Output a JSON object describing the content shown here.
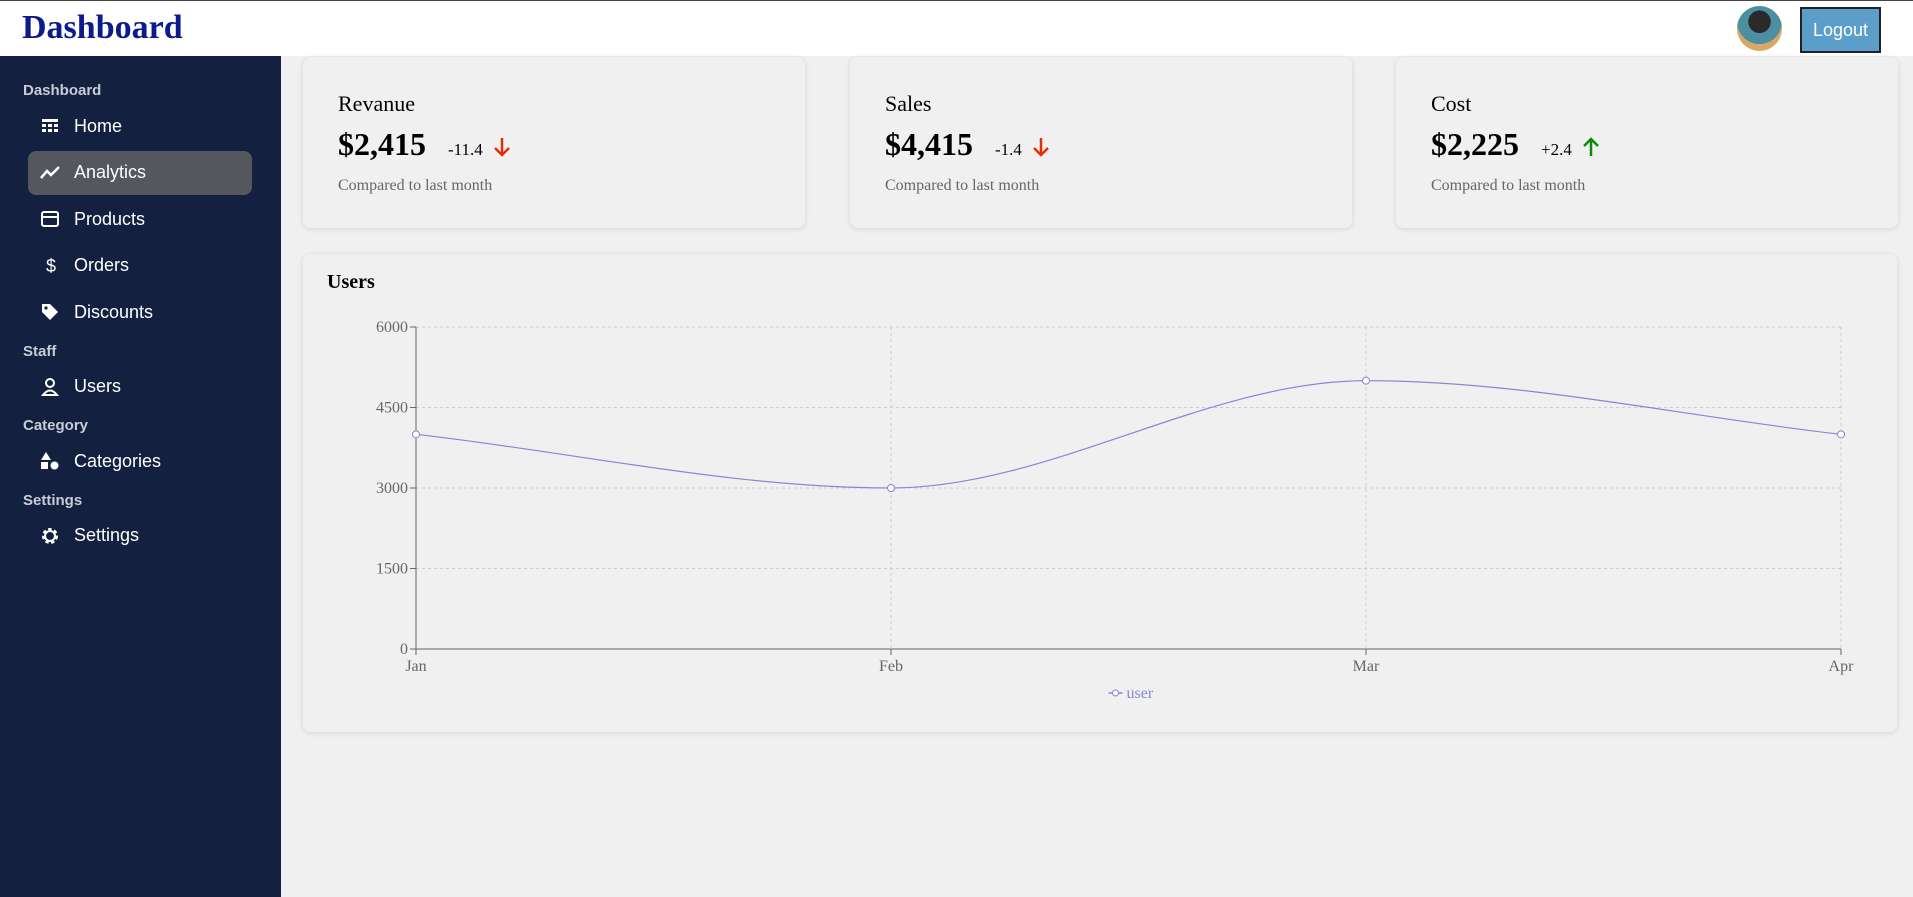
{
  "header": {
    "title": "Dashboard",
    "button": "Logout"
  },
  "sidebar": {
    "sections": [
      {
        "heading": "Dashboard",
        "items": [
          "Home",
          "Analytics",
          "Products",
          "Orders",
          "Discounts"
        ]
      },
      {
        "heading": "Staff",
        "items": [
          "Users"
        ]
      },
      {
        "heading": "Category",
        "items": [
          "Categories"
        ]
      },
      {
        "heading": "Settings",
        "items": [
          "Settings"
        ]
      }
    ]
  },
  "cards": [
    {
      "title": "Revanue",
      "value": "$2,415",
      "change": "-11.4",
      "note": "Compared to last month"
    },
    {
      "title": "Sales",
      "value": "$4,415",
      "change": "-1.4",
      "note": "Compared to last month"
    },
    {
      "title": "Cost",
      "value": "$2,225",
      "change": "+2.4",
      "note": "Compared to last month"
    }
  ],
  "chart_data": {
    "type": "line",
    "title": "Users",
    "categories": [
      "Jan",
      "Feb",
      "Mar",
      "Apr"
    ],
    "series": [
      {
        "name": "user",
        "color": "#8884d8",
        "values": [
          4000,
          3000,
          5000,
          4000
        ]
      }
    ],
    "ylim": [
      0,
      6000
    ],
    "yticks": [
      0,
      1500,
      3000,
      4500,
      6000
    ],
    "grid": true
  }
}
